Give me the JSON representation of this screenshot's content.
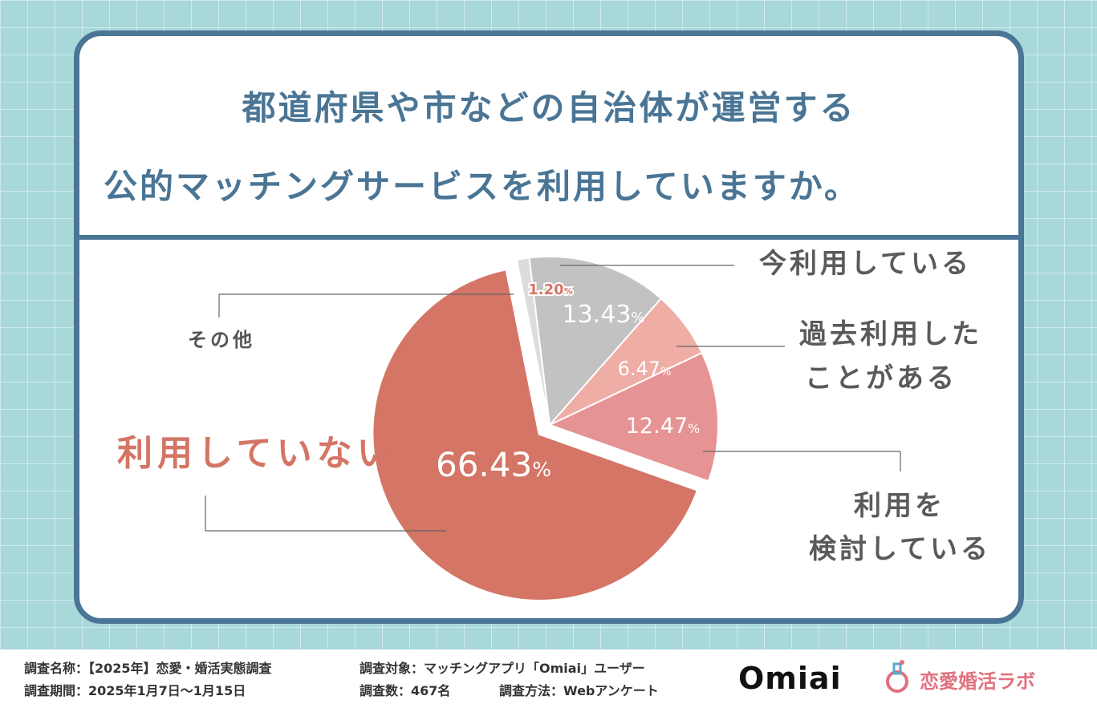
{
  "title": {
    "line1": "都道府県や市などの自治体が運営する",
    "line2": "公的マッチングサービスを利用していますか。"
  },
  "chart_data": {
    "type": "pie",
    "start_angle_deg": -7,
    "slices": [
      {
        "label": "今利用している",
        "value": 13.43,
        "value_label": "13.43",
        "color": "#c2c2c2"
      },
      {
        "label": "過去利用したことがある",
        "label_lines": [
          "過去利用した",
          "ことがある"
        ],
        "value": 6.47,
        "value_label": "6.47",
        "color": "#eeada5"
      },
      {
        "label": "利用を検討している",
        "label_lines": [
          "利用を",
          "検討している"
        ],
        "value": 12.47,
        "value_label": "12.47",
        "color": "#e69393"
      },
      {
        "label": "利用していない",
        "value": 66.43,
        "value_label": "66.43",
        "color": "#d47565",
        "exploded": true
      },
      {
        "label": "その他",
        "value": 1.2,
        "value_label": "1.20",
        "color": "#dcdcdc"
      }
    ],
    "unit": "%"
  },
  "footer": {
    "survey_name": "調査名称：【2025年】恋愛・婚活実態調査",
    "survey_period": "調査期間：2025年1月7日〜1月15日",
    "survey_target": "調査対象：マッチングアプリ「Omiai」ユーザー",
    "survey_count": "調査数：467名",
    "survey_method": "調査方法：Webアンケート",
    "logo_omiai": "Omiai",
    "logo_lab": "恋愛婚活ラボ"
  },
  "colors": {
    "frame": "#4a7595",
    "background": "#a8d8da",
    "accent_red": "#d47565",
    "label_gray": "#555555"
  }
}
